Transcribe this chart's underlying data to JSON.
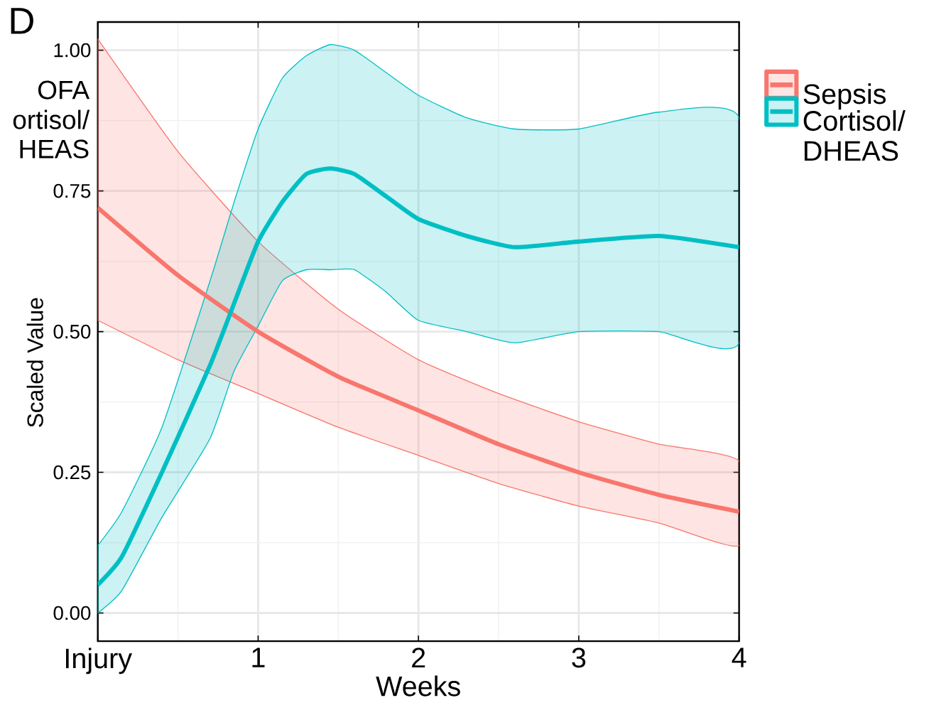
{
  "chart_data": {
    "type": "line",
    "title": "D",
    "xlabel": "Weeks",
    "ylabel": "Scaled Value",
    "annotations": [
      "OFA",
      "ortisol/",
      "HEAS"
    ],
    "xlim": [
      0,
      4
    ],
    "ylim": [
      -0.05,
      1.05
    ],
    "xticks": [
      {
        "value": 0,
        "label": "Injury"
      },
      1,
      2,
      3,
      4
    ],
    "yticks": [
      {
        "value": 0,
        "label": "0.00"
      },
      0.25,
      {
        "value": 0.5,
        "label": "0.50"
      },
      0.75,
      {
        "value": 1,
        "label": "1.00"
      }
    ],
    "grid": true,
    "legend": "right",
    "series": [
      {
        "name": "Sepsis",
        "color": "#f8766d",
        "x": [
          0,
          0.5,
          1,
          1.5,
          2,
          2.5,
          3,
          3.5,
          4
        ],
        "values": [
          0.72,
          0.6,
          0.5,
          0.42,
          0.36,
          0.3,
          0.25,
          0.21,
          0.18
        ],
        "upper": [
          1.02,
          0.82,
          0.66,
          0.54,
          0.45,
          0.39,
          0.34,
          0.3,
          0.27
        ],
        "lower": [
          0.52,
          0.45,
          0.39,
          0.33,
          0.28,
          0.23,
          0.19,
          0.16,
          0.12
        ]
      },
      {
        "name": "Cortisol/ DHEAS",
        "color": "#00bfc4",
        "x": [
          0,
          0.15,
          0.4,
          0.7,
          0.85,
          1.0,
          1.15,
          1.3,
          1.45,
          1.6,
          1.8,
          2.0,
          2.3,
          2.6,
          3.0,
          3.5,
          4.0
        ],
        "values": [
          0.05,
          0.1,
          0.25,
          0.44,
          0.55,
          0.66,
          0.73,
          0.78,
          0.79,
          0.78,
          0.74,
          0.7,
          0.67,
          0.65,
          0.66,
          0.67,
          0.65
        ],
        "upper": [
          0.12,
          0.18,
          0.33,
          0.59,
          0.73,
          0.86,
          0.95,
          0.99,
          1.01,
          1.0,
          0.96,
          0.92,
          0.88,
          0.86,
          0.86,
          0.89,
          0.88
        ],
        "lower": [
          0,
          0.04,
          0.17,
          0.31,
          0.43,
          0.51,
          0.59,
          0.61,
          0.61,
          0.61,
          0.57,
          0.52,
          0.5,
          0.48,
          0.5,
          0.5,
          0.48
        ]
      }
    ]
  }
}
